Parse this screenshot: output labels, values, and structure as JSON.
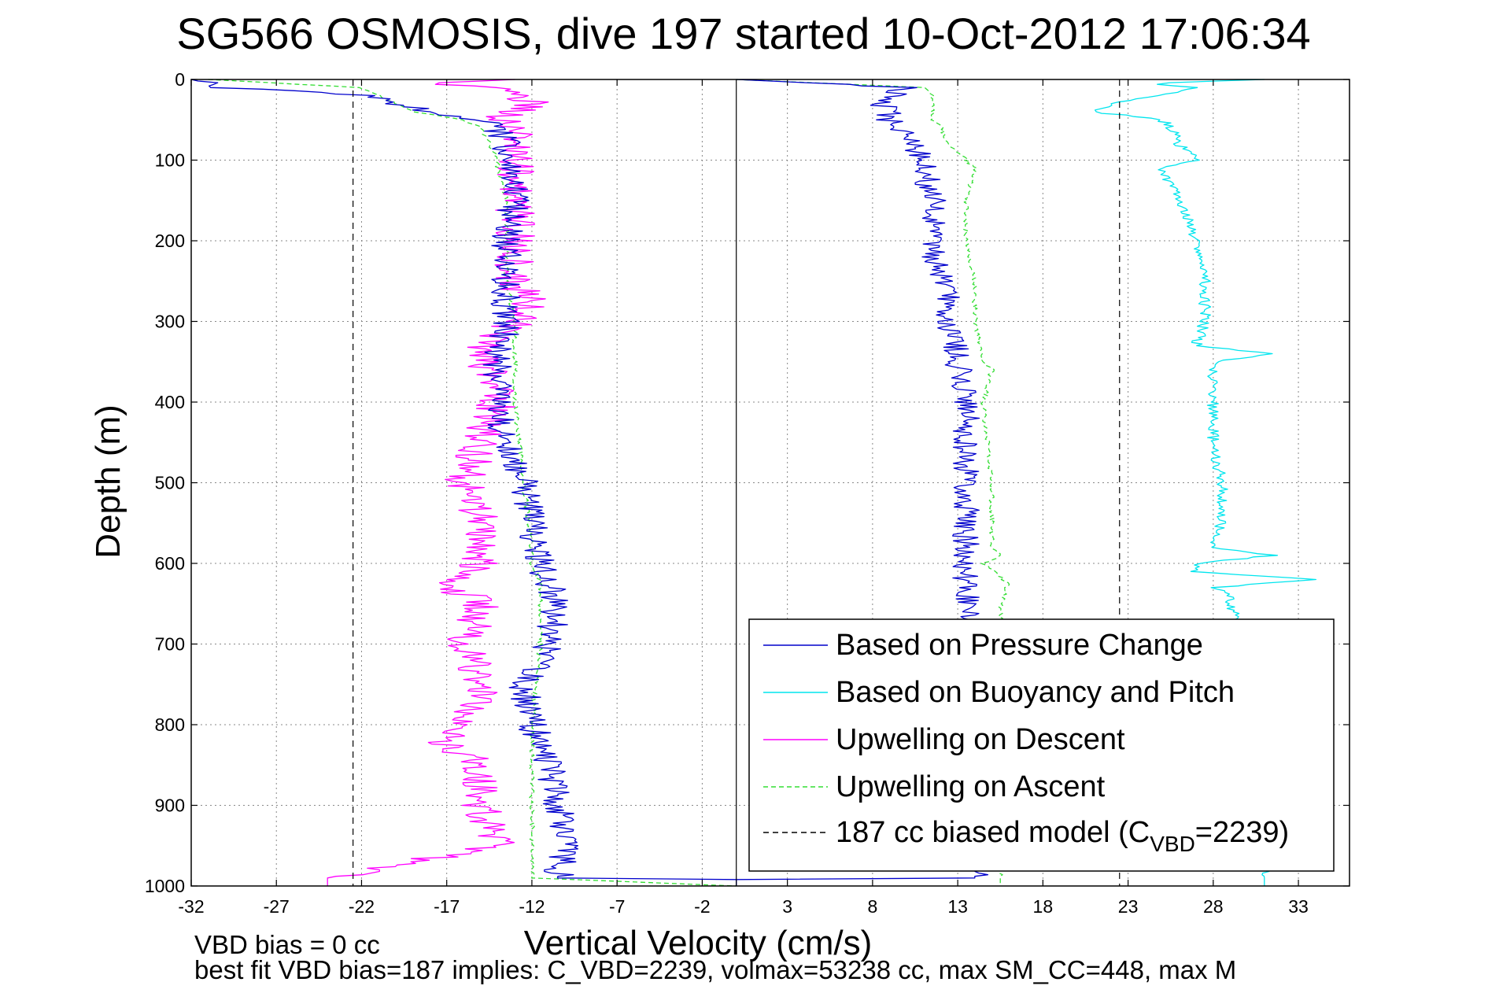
{
  "chart_data": {
    "type": "line",
    "title": "SG566 OSMOSIS, dive 197 started 10-Oct-2012 17:06:34",
    "xlabel": "Vertical Velocity (cm/s)",
    "ylabel": "Depth (m)",
    "xlim": [
      -32,
      36
    ],
    "ylim": [
      1000,
      0
    ],
    "xticks": [
      -32,
      -27,
      -22,
      -17,
      -12,
      -7,
      -2,
      3,
      8,
      13,
      18,
      23,
      28,
      33
    ],
    "yticks": [
      0,
      100,
      200,
      300,
      400,
      500,
      600,
      700,
      800,
      900,
      1000
    ],
    "grid": true,
    "legend_position": "bottom-right",
    "zero_line_x": 0,
    "model_bounds_x": [
      -22.5,
      22.5
    ],
    "series": [
      {
        "name": "Based on Pressure Change",
        "color": "#0000cc",
        "style": "solid",
        "depth": [
          0,
          10,
          20,
          30,
          40,
          50,
          60,
          80,
          100,
          150,
          200,
          250,
          280,
          300,
          350,
          400,
          450,
          500,
          550,
          600,
          650,
          700,
          750,
          800,
          850,
          900,
          950,
          990,
          990,
          1000
        ],
        "descent": [
          -32,
          -30,
          -22,
          -20,
          -18,
          -15,
          -14,
          -13.5,
          -13.5,
          -13,
          -13.5,
          -13.5,
          -13.5,
          -13.5,
          -14,
          -14,
          -13.5,
          -12.5,
          -12,
          -11.5,
          -10.5,
          -11,
          -12.5,
          -12,
          -11,
          -10.5,
          -10,
          -10.5,
          0,
          0
        ],
        "ascent": [
          0,
          10,
          9,
          8.5,
          9,
          9,
          9.5,
          10.5,
          11,
          11.5,
          11.5,
          12,
          12.5,
          12.5,
          13,
          13.5,
          13.5,
          13.5,
          13.5,
          13.5,
          13.5,
          14,
          14,
          14,
          14,
          14,
          14,
          14,
          0,
          0
        ]
      },
      {
        "name": "Based on Buoyancy and Pitch",
        "color": "#00e5ee",
        "style": "solid",
        "depth": [
          0,
          5,
          10,
          20,
          30,
          40,
          50,
          60,
          80,
          100,
          110,
          150,
          200,
          250,
          300,
          330,
          340,
          350,
          400,
          450,
          500,
          550,
          580,
          590,
          600,
          610,
          620,
          630,
          640,
          700,
          800,
          900,
          990,
          1000
        ],
        "ascent": [
          31,
          24,
          27,
          25,
          22,
          21,
          25,
          25.5,
          26,
          27,
          25,
          26,
          27,
          27.5,
          27.5,
          27,
          31.5,
          28,
          28,
          28,
          28.5,
          28.5,
          28,
          31.5,
          27,
          27,
          34,
          28,
          29,
          29.5,
          30,
          30.5,
          31,
          31
        ]
      },
      {
        "name": "Upwelling on Descent",
        "color": "#ff00ff",
        "style": "solid",
        "depth": [
          0,
          5,
          10,
          20,
          30,
          40,
          50,
          60,
          80,
          100,
          150,
          200,
          250,
          280,
          300,
          340,
          400,
          450,
          500,
          550,
          600,
          625,
          650,
          700,
          750,
          800,
          825,
          850,
          900,
          950,
          990,
          1000
        ],
        "upwelling": [
          -13,
          -18,
          -14,
          -13,
          -12,
          -13,
          -14,
          -13,
          -13,
          -13,
          -13,
          -13,
          -13,
          -12,
          -13,
          -15,
          -14,
          -15,
          -16,
          -15,
          -15,
          -17,
          -15,
          -16,
          -15,
          -16,
          -17,
          -15,
          -15,
          -14,
          -24,
          -24
        ]
      },
      {
        "name": "Upwelling on Ascent",
        "color": "#33dd33",
        "style": "dashed",
        "depth": [
          0,
          10,
          20,
          30,
          40,
          50,
          60,
          80,
          100,
          110,
          150,
          200,
          250,
          300,
          350,
          360,
          400,
          500,
          580,
          590,
          600,
          625,
          650,
          700,
          800,
          900,
          990,
          1000
        ],
        "descent": [
          -31,
          -22,
          -21,
          -20,
          -19,
          -16,
          -15,
          -14.5,
          -14,
          -14,
          -13.5,
          -13.5,
          -13.5,
          -13,
          -13,
          -13,
          -13,
          -12.5,
          -12,
          -12,
          -12,
          -11.5,
          -11.5,
          -11.5,
          -12,
          -12,
          -12,
          0
        ],
        "ascent": [
          0,
          11,
          11.5,
          11.5,
          11.5,
          11.5,
          12,
          12.5,
          13.5,
          14,
          13.5,
          13.5,
          14,
          14,
          14.5,
          15,
          14.5,
          15,
          15,
          15.5,
          14.5,
          16,
          15.5,
          15.5,
          15.5,
          15.5,
          15.5,
          15.5
        ]
      },
      {
        "name": "187 cc biased model (C_VBD=2239)",
        "color": "#000000",
        "style": "dashed"
      }
    ],
    "legend": [
      {
        "label": "Based on Pressure Change",
        "color": "#0000cc",
        "dash": ""
      },
      {
        "label": "Based on Buoyancy and Pitch",
        "color": "#00e5ee",
        "dash": ""
      },
      {
        "label": "Upwelling on Descent",
        "color": "#ff00ff",
        "dash": ""
      },
      {
        "label": "Upwelling on Ascent",
        "color": "#33dd33",
        "dash": "6,4"
      }
    ],
    "legend_model": {
      "prefix": "187 cc biased model (C",
      "sub": "VBD",
      "suffix": "=2239)",
      "color": "#000000"
    },
    "annotations": [
      "VBD bias = 0 cc",
      "best fit VBD bias=187 implies: C_VBD=2239, volmax=53238 cc, max SM_CC=448, max M"
    ]
  }
}
